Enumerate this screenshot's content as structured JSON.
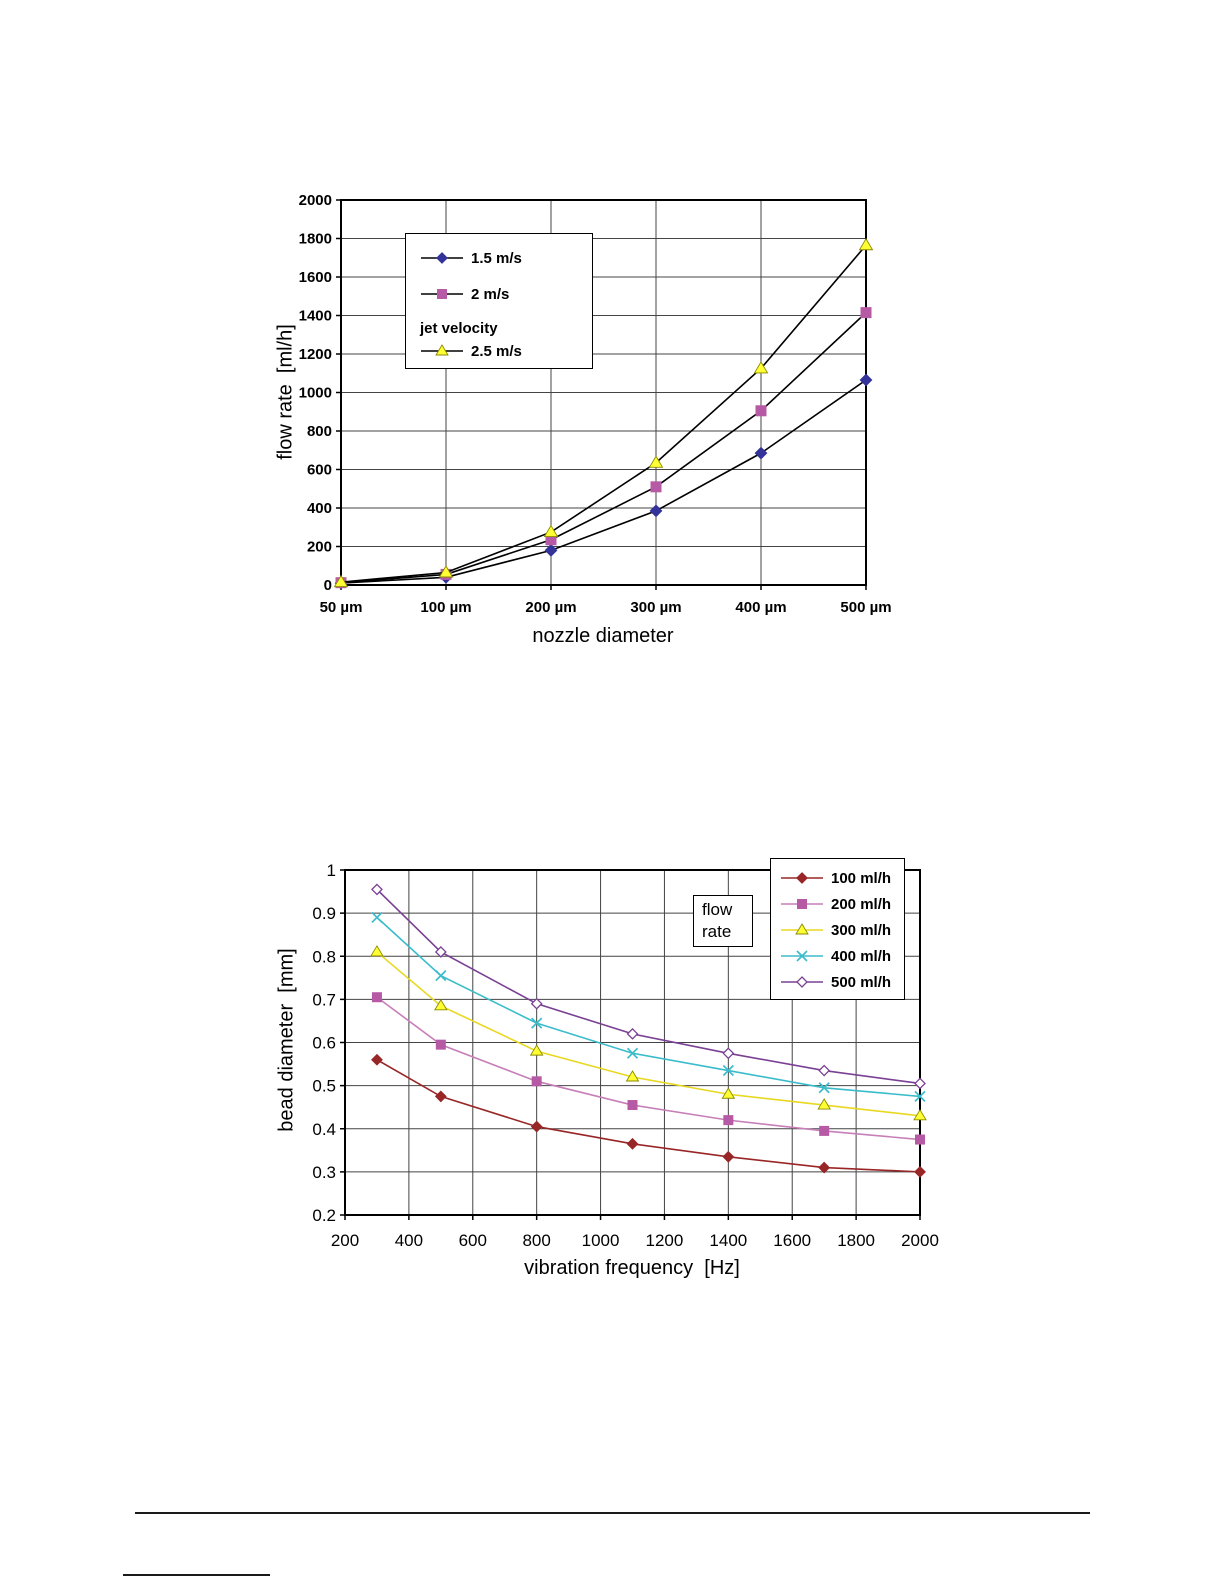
{
  "chart_data": [
    {
      "id": "flow-rate-chart",
      "type": "line",
      "title": "",
      "categories": [
        "50 µm",
        "100 µm",
        "200 µm",
        "300 µm",
        "400 µm",
        "500 µm"
      ],
      "series": [
        {
          "name": "1.5 m/s",
          "marker": "diamond",
          "marker_color": "#333399",
          "line_color": "#000000",
          "values": [
            10,
            40,
            180,
            385,
            685,
            1065
          ]
        },
        {
          "name": "2 m/s",
          "marker": "square",
          "marker_color": "#b75aa6",
          "line_color": "#000000",
          "values": [
            12,
            55,
            235,
            510,
            905,
            1415
          ]
        },
        {
          "name": "2.5 m/s",
          "marker": "triangle",
          "marker_color": "#ffff33",
          "marker_edge": "#8a8a00",
          "line_color": "#000000",
          "values": [
            15,
            65,
            275,
            635,
            1125,
            1765
          ]
        }
      ],
      "legend_note": "jet velocity",
      "legend_note_index": 2,
      "xlabel": "nozzle diameter",
      "ylabel": "flow rate  [ml/h]",
      "ylim": [
        0,
        2000
      ],
      "ytick_step": 200,
      "grid": true,
      "legend_position": "upper-left-inside"
    },
    {
      "id": "bead-diameter-chart",
      "type": "line",
      "title": "",
      "x": [
        300,
        500,
        800,
        1100,
        1400,
        1700,
        2000
      ],
      "series": [
        {
          "name": "100 ml/h",
          "marker": "diamond",
          "marker_color": "#992626",
          "line_color": "#992626",
          "values": [
            0.56,
            0.475,
            0.405,
            0.365,
            0.335,
            0.31,
            0.3
          ]
        },
        {
          "name": "200 ml/h",
          "marker": "square",
          "marker_color": "#b75aa6",
          "line_color": "#c77fb8",
          "values": [
            0.705,
            0.595,
            0.51,
            0.455,
            0.42,
            0.395,
            0.375
          ]
        },
        {
          "name": "300 ml/h",
          "marker": "triangle",
          "marker_color": "#ffff33",
          "marker_edge": "#8a8a00",
          "line_color": "#e8d820",
          "values": [
            0.81,
            0.685,
            0.58,
            0.52,
            0.48,
            0.455,
            0.43
          ]
        },
        {
          "name": "400 ml/h",
          "marker": "x",
          "marker_color": "#3bbccb",
          "line_color": "#3bbccb",
          "values": [
            0.89,
            0.755,
            0.645,
            0.575,
            0.535,
            0.495,
            0.475
          ]
        },
        {
          "name": "500 ml/h",
          "marker": "diamond-open",
          "marker_color": "#7a4094",
          "line_color": "#7a4094",
          "values": [
            0.955,
            0.81,
            0.69,
            0.62,
            0.575,
            0.535,
            0.505
          ]
        }
      ],
      "legend_title": "flow rate",
      "xlabel": "vibration frequency  [Hz]",
      "ylabel": "bead diameter  [mm]",
      "xlim": [
        200,
        2000
      ],
      "xtick_step": 200,
      "ylim": [
        0.2,
        1.0
      ],
      "ytick_step": 0.1,
      "grid": true,
      "legend_position": "upper-right-inside"
    }
  ]
}
